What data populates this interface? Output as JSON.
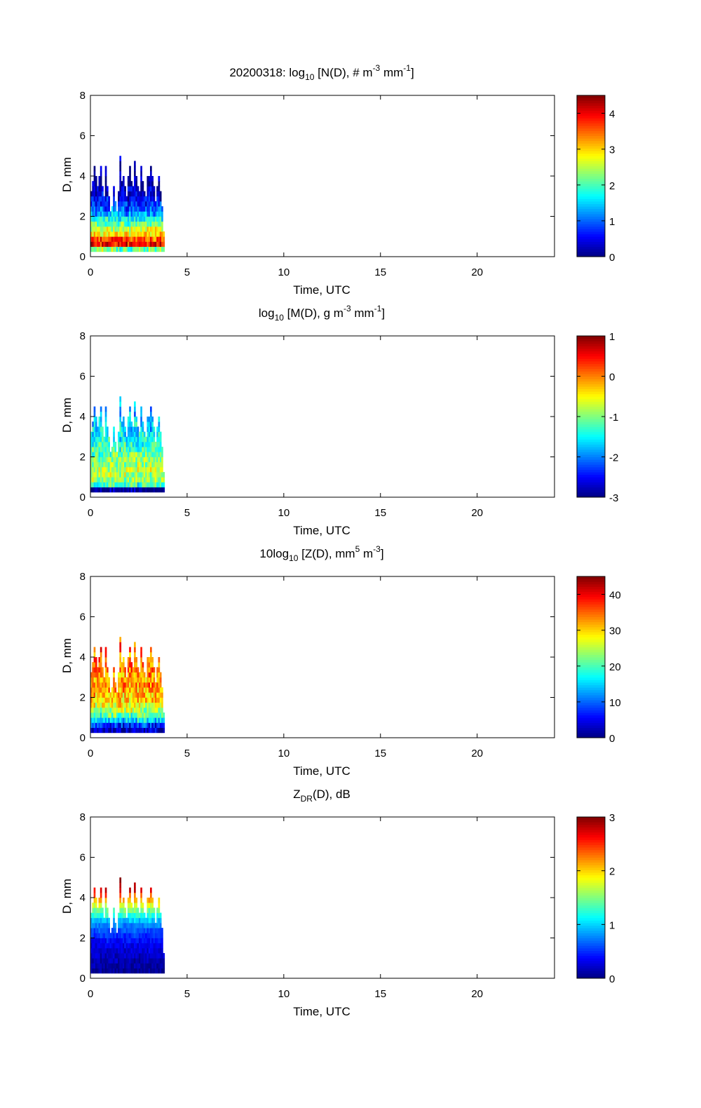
{
  "chart_data": [
    {
      "type": "heatmap",
      "title_parts": [
        {
          "t": "20200318: log"
        },
        {
          "t": "10",
          "sub": true
        },
        {
          "t": " [N(D), # m"
        },
        {
          "t": "-3",
          "sup": true
        },
        {
          "t": " mm"
        },
        {
          "t": "-1",
          "sup": true
        },
        {
          "t": "]"
        }
      ],
      "xlabel": "Time, UTC",
      "ylabel": "D, mm",
      "xlim": [
        0,
        24
      ],
      "ylim": [
        0,
        8
      ],
      "xticks": [
        "0",
        "5",
        "10",
        "15",
        "20"
      ],
      "yticks": [
        "0",
        "2",
        "4",
        "6",
        "8"
      ],
      "clim": [
        0,
        4.5
      ],
      "cticks": [
        "0",
        "1",
        "2",
        "3",
        "4"
      ],
      "profile": [
        2.3,
        3.9,
        3.6,
        3.0,
        2.6,
        2.1,
        1.7,
        1.3,
        1.0,
        0.7,
        0.5,
        0.4,
        0.3,
        0.2,
        0.2,
        0.1,
        0.1,
        0.1,
        0.1,
        0.1
      ],
      "noise": 0.5
    },
    {
      "type": "heatmap",
      "title_parts": [
        {
          "t": "log"
        },
        {
          "t": "10",
          "sub": true
        },
        {
          "t": " [M(D), g m"
        },
        {
          "t": "-3",
          "sup": true
        },
        {
          "t": " mm"
        },
        {
          "t": "-1",
          "sup": true
        },
        {
          "t": "]"
        }
      ],
      "xlabel": "Time, UTC",
      "ylabel": "D, mm",
      "xlim": [
        0,
        24
      ],
      "ylim": [
        0,
        8
      ],
      "xticks": [
        "0",
        "5",
        "10",
        "15",
        "20"
      ],
      "yticks": [
        "0",
        "2",
        "4",
        "6",
        "8"
      ],
      "clim": [
        -3,
        1
      ],
      "cticks": [
        "1",
        "0",
        "-1",
        "-2",
        "-3"
      ],
      "profile": [
        -3.0,
        -1.3,
        -0.9,
        -0.8,
        -0.8,
        -0.9,
        -1.0,
        -1.1,
        -1.2,
        -1.3,
        -1.4,
        -1.5,
        -1.6,
        -1.6,
        -1.7,
        -1.8,
        -1.8,
        -1.9,
        -1.9,
        -2.0
      ],
      "noise": 0.45
    },
    {
      "type": "heatmap",
      "title_parts": [
        {
          "t": "10log"
        },
        {
          "t": "10",
          "sub": true
        },
        {
          "t": " [Z(D),  mm"
        },
        {
          "t": "5",
          "sup": true
        },
        {
          "t": " m"
        },
        {
          "t": "-3",
          "sup": true
        },
        {
          "t": "]"
        }
      ],
      "xlabel": "Time, UTC",
      "ylabel": "D, mm",
      "xlim": [
        0,
        24
      ],
      "ylim": [
        0,
        8
      ],
      "xticks": [
        "0",
        "5",
        "10",
        "15",
        "20"
      ],
      "yticks": [
        "0",
        "2",
        "4",
        "6",
        "8"
      ],
      "clim": [
        0,
        45
      ],
      "cticks": [
        "40",
        "30",
        "20",
        "10",
        "0"
      ],
      "profile": [
        2,
        8,
        15,
        21,
        25,
        28,
        30,
        31,
        32,
        33,
        33,
        33,
        34,
        34,
        35,
        35,
        36,
        36,
        37,
        38
      ],
      "noise": 5
    },
    {
      "type": "heatmap",
      "title_parts": [
        {
          "t": "Z"
        },
        {
          "t": "DR",
          "sub": true
        },
        {
          "t": "(D), dB"
        }
      ],
      "xlabel": "Time, UTC",
      "ylabel": "D, mm",
      "xlim": [
        0,
        24
      ],
      "ylim": [
        0,
        8
      ],
      "xticks": [
        "0",
        "5",
        "10",
        "15",
        "20"
      ],
      "yticks": [
        "0",
        "2",
        "4",
        "6",
        "8"
      ],
      "clim": [
        0,
        3
      ],
      "cticks": [
        "3",
        "2",
        "1",
        "0"
      ],
      "profile": [
        0.05,
        0.1,
        0.15,
        0.2,
        0.25,
        0.3,
        0.4,
        0.5,
        0.6,
        0.75,
        0.95,
        1.2,
        1.45,
        1.75,
        2.1,
        2.4,
        2.7,
        2.9,
        3.0,
        3.0
      ],
      "noise": 0.12
    }
  ],
  "shared": {
    "time_bin_hours": 0.0833,
    "time_start": 0,
    "d_bin_start": 0.25,
    "d_bin_width": 0.25,
    "top_D": [
      3.2,
      3.6,
      4.3,
      3.9,
      3.4,
      4.0,
      4.3,
      3.5,
      3.0,
      4.3,
      3.3,
      2.8,
      2.1,
      2.3,
      3.5,
      2.7,
      2.2,
      3.1,
      4.9,
      3.6,
      3.9,
      3.3,
      2.9,
      4.0,
      4.3,
      3.7,
      3.5,
      4.6,
      3.9,
      3.4,
      3.2,
      4.3,
      3.6,
      3.1,
      2.9,
      3.8,
      4.0,
      4.3,
      3.9,
      3.3,
      2.6,
      3.4,
      3.9,
      3.2,
      2.4,
      1.2
    ]
  }
}
